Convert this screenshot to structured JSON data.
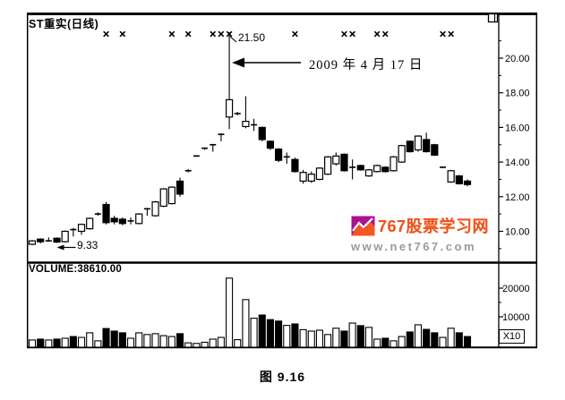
{
  "header": {
    "title": "ST重实(日线)"
  },
  "caption": "图 9.16",
  "watermark": {
    "site_name": "767股票学习网",
    "url": "www.net767.com",
    "accent_color": "#f1511b",
    "logo_color": "#ab1290"
  },
  "chart_data": {
    "type": "candlestick",
    "title": "ST重实(日线)",
    "volume_label": "VOLUME:38610.00",
    "volume_multiplier": "X10",
    "price_ylim": [
      9.0,
      21.8
    ],
    "price_ticks": [
      20,
      18,
      16,
      14,
      12,
      10
    ],
    "price_tick_labels": [
      "20.00",
      "18.00",
      "16.00",
      "14.00",
      "12.00",
      "10.00"
    ],
    "price_minor_ticks": [
      21,
      19,
      17,
      15,
      13,
      11,
      9
    ],
    "volume_ylim": [
      0,
      28000
    ],
    "volume_ticks": [
      20000,
      10000
    ],
    "volume_tick_labels": [
      "20000",
      "10000"
    ],
    "volume_minor_ticks": [
      15000,
      5000
    ],
    "grid": false,
    "columns": [
      "open",
      "high",
      "low",
      "close",
      "volume_x10"
    ],
    "candles": [
      [
        9.25,
        9.5,
        9.2,
        9.45,
        1900
      ],
      [
        9.55,
        9.6,
        9.3,
        9.4,
        2200
      ],
      [
        9.45,
        9.65,
        9.4,
        9.55,
        1900
      ],
      [
        9.6,
        9.65,
        9.33,
        9.38,
        2200
      ],
      [
        9.4,
        10.05,
        9.35,
        10.0,
        2500
      ],
      [
        10.1,
        10.2,
        9.7,
        10.0,
        3100
      ],
      [
        10.0,
        10.45,
        9.8,
        10.4,
        2800
      ],
      [
        10.15,
        10.8,
        10.1,
        10.75,
        4400
      ],
      [
        11.0,
        11.1,
        10.9,
        11.0,
        1600
      ],
      [
        11.55,
        11.7,
        10.4,
        10.5,
        5900
      ],
      [
        10.75,
        10.9,
        10.4,
        10.55,
        5000
      ],
      [
        10.7,
        10.8,
        10.35,
        10.45,
        4400
      ],
      [
        10.6,
        10.8,
        10.4,
        10.6,
        2500
      ],
      [
        10.45,
        11.05,
        10.4,
        11.0,
        4400
      ],
      [
        11.3,
        11.35,
        10.9,
        11.3,
        3800
      ],
      [
        10.9,
        11.75,
        10.85,
        11.7,
        4100
      ],
      [
        11.45,
        12.5,
        11.4,
        12.45,
        3400
      ],
      [
        11.6,
        12.6,
        11.55,
        12.55,
        3100
      ],
      [
        12.9,
        13.1,
        12.0,
        12.15,
        4100
      ],
      [
        13.5,
        13.6,
        13.4,
        13.5,
        900
      ],
      [
        14.35,
        14.4,
        14.3,
        14.35,
        700
      ],
      [
        14.8,
        14.85,
        14.7,
        14.8,
        1100
      ],
      [
        15.0,
        15.05,
        14.6,
        15.0,
        2200
      ],
      [
        15.6,
        15.65,
        15.2,
        15.6,
        2800
      ],
      [
        16.6,
        21.5,
        15.9,
        17.6,
        23500
      ],
      [
        16.8,
        16.9,
        16.7,
        16.8,
        2000
      ],
      [
        16.05,
        17.8,
        15.95,
        16.35,
        16000
      ],
      [
        16.15,
        16.5,
        15.8,
        16.15,
        9500
      ],
      [
        16.0,
        16.05,
        15.2,
        15.3,
        10600
      ],
      [
        15.2,
        15.25,
        14.7,
        14.8,
        9000
      ],
      [
        14.75,
        14.8,
        14.0,
        14.1,
        8500
      ],
      [
        14.3,
        14.55,
        13.9,
        14.3,
        7000
      ],
      [
        14.15,
        14.25,
        13.4,
        13.45,
        7500
      ],
      [
        12.9,
        13.55,
        12.75,
        13.4,
        5500
      ],
      [
        12.9,
        13.45,
        12.8,
        13.3,
        5000
      ],
      [
        13.0,
        13.7,
        12.95,
        13.65,
        5300
      ],
      [
        13.3,
        14.35,
        13.25,
        14.3,
        3800
      ],
      [
        13.9,
        14.55,
        13.8,
        14.35,
        6000
      ],
      [
        14.45,
        14.5,
        13.45,
        13.5,
        5000
      ],
      [
        13.7,
        14.15,
        13.0,
        13.7,
        7800
      ],
      [
        13.8,
        13.85,
        13.5,
        13.55,
        6900
      ],
      [
        13.2,
        13.6,
        13.15,
        13.55,
        6300
      ],
      [
        13.45,
        13.85,
        13.4,
        13.8,
        2200
      ],
      [
        13.7,
        13.75,
        13.4,
        13.45,
        2500
      ],
      [
        13.5,
        14.35,
        13.45,
        14.3,
        1600
      ],
      [
        14.0,
        15.0,
        13.95,
        14.95,
        3100
      ],
      [
        15.2,
        15.25,
        14.55,
        14.6,
        4700
      ],
      [
        14.7,
        15.55,
        14.6,
        15.5,
        7200
      ],
      [
        15.3,
        15.7,
        14.55,
        14.6,
        5600
      ],
      [
        15.0,
        15.05,
        14.35,
        14.4,
        4400
      ],
      [
        13.7,
        13.75,
        13.65,
        13.7,
        2800
      ],
      [
        12.85,
        13.55,
        12.8,
        13.5,
        6000
      ],
      [
        13.2,
        13.25,
        12.7,
        12.75,
        4400
      ],
      [
        12.9,
        13.0,
        12.6,
        12.7,
        3100
      ]
    ],
    "star_marker_indices": [
      9,
      11,
      17,
      19,
      22,
      23,
      24,
      32,
      38,
      39,
      42,
      43,
      50,
      51
    ],
    "annotations": {
      "high_label": "21.50",
      "high_price": 21.5,
      "high_candle_index": 24,
      "date_label": "2009 年 4 月 17 日",
      "date_candle_index": 24,
      "low_label": "9.33",
      "low_price": 9.33,
      "low_candle_index": 3
    }
  }
}
